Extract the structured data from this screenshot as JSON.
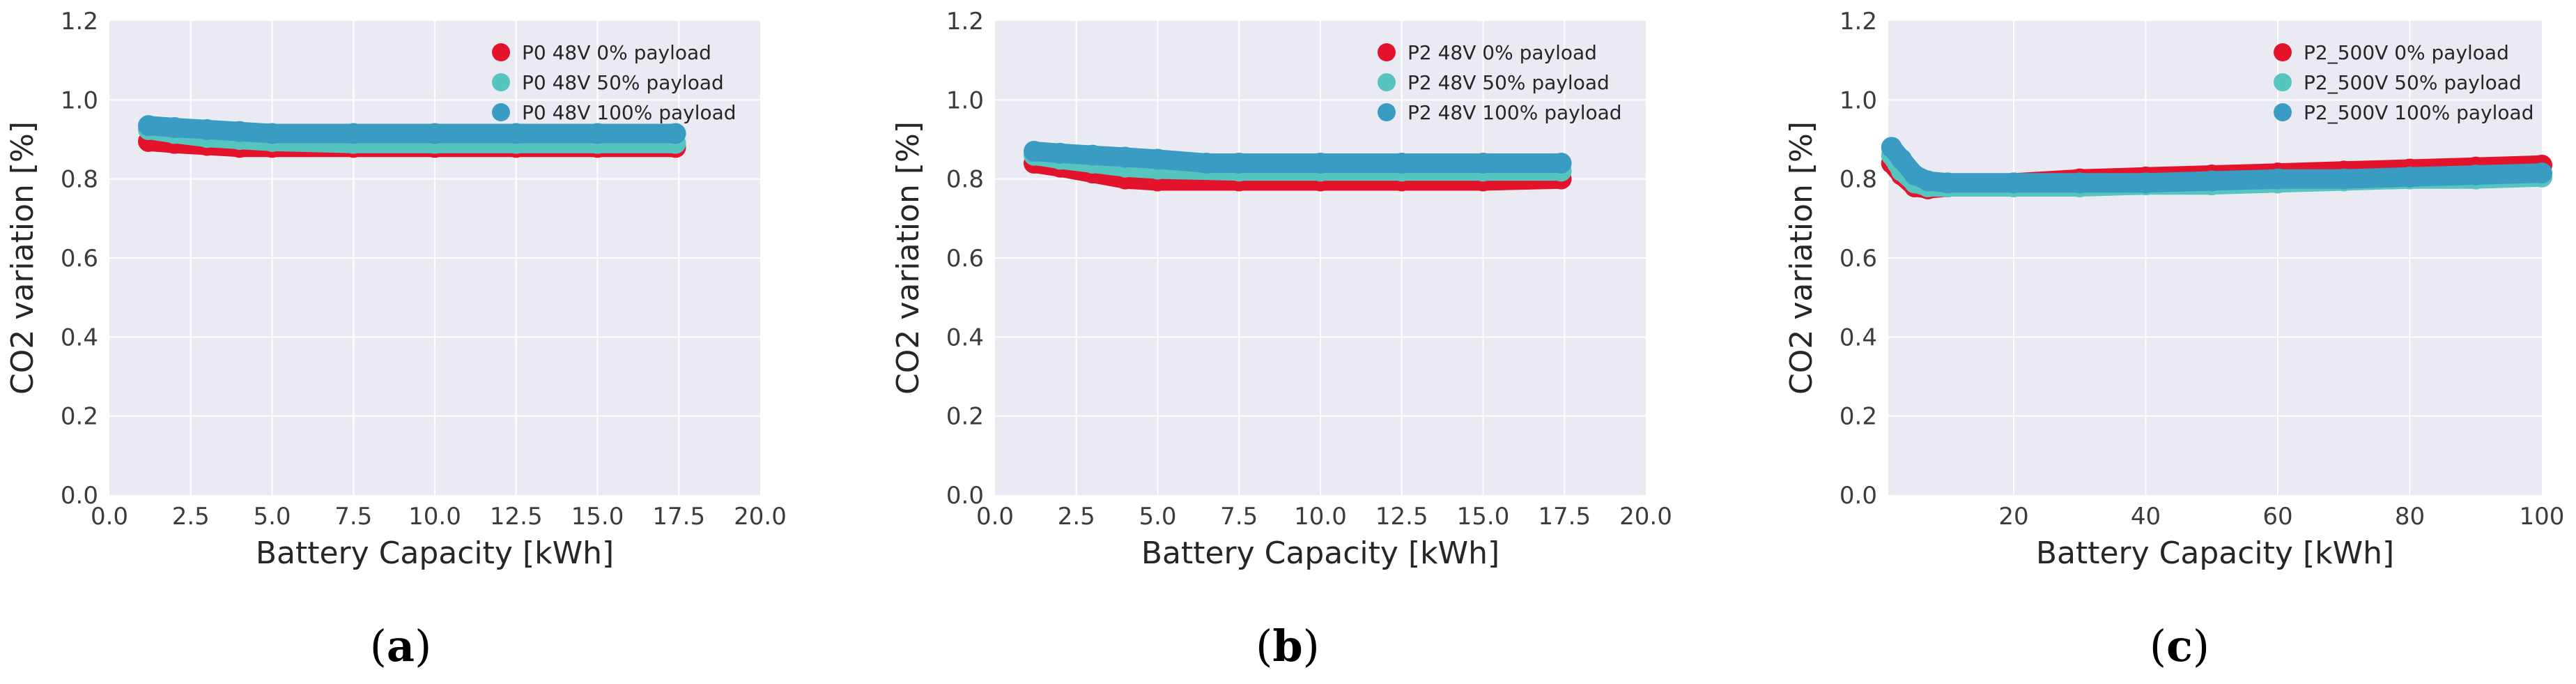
{
  "colors": {
    "plot_bg": "#eaeaf2",
    "grid": "#ffffff",
    "series_0pct": "#e3132c",
    "series_50pct": "#56c5c0",
    "series_100pct": "#3a9cc3"
  },
  "chart_data": [
    {
      "type": "scatter",
      "panel_label": {
        "open": "(",
        "letter": "a",
        "close": ")"
      },
      "xlabel": "Battery Capacity [kWh]",
      "ylabel": "CO2 variation [%]",
      "xlim": [
        0,
        20
      ],
      "ylim": [
        0,
        1.2
      ],
      "xticks": [
        "0.0",
        "2.5",
        "5.0",
        "7.5",
        "10.0",
        "12.5",
        "15.0",
        "17.5",
        "20.0"
      ],
      "yticks": [
        "0.0",
        "0.2",
        "0.4",
        "0.6",
        "0.8",
        "1.0",
        "1.2"
      ],
      "grid": true,
      "legend_position": "top-right",
      "series": [
        {
          "name": "P0 48V 0% payload",
          "color_key": "series_0pct",
          "points": [
            [
              1.2,
              0.895
            ],
            [
              2,
              0.89
            ],
            [
              3,
              0.885
            ],
            [
              4,
              0.88
            ],
            [
              5,
              0.88
            ],
            [
              7.5,
              0.88
            ],
            [
              10,
              0.88
            ],
            [
              12.5,
              0.88
            ],
            [
              15,
              0.88
            ],
            [
              17.4,
              0.88
            ]
          ]
        },
        {
          "name": "P0 48V 50% payload",
          "color_key": "series_50pct",
          "points": [
            [
              1.2,
              0.925
            ],
            [
              2,
              0.915
            ],
            [
              3,
              0.905
            ],
            [
              4,
              0.9
            ],
            [
              5,
              0.895
            ],
            [
              7.5,
              0.89
            ],
            [
              10,
              0.89
            ],
            [
              12.5,
              0.89
            ],
            [
              15,
              0.89
            ],
            [
              17.4,
              0.89
            ]
          ]
        },
        {
          "name": "P0 48V 100% payload",
          "color_key": "series_100pct",
          "points": [
            [
              1.2,
              0.935
            ],
            [
              2,
              0.93
            ],
            [
              3,
              0.925
            ],
            [
              4,
              0.92
            ],
            [
              5,
              0.915
            ],
            [
              7.5,
              0.915
            ],
            [
              10,
              0.915
            ],
            [
              12.5,
              0.915
            ],
            [
              15,
              0.915
            ],
            [
              17.4,
              0.915
            ]
          ]
        }
      ]
    },
    {
      "type": "scatter",
      "panel_label": {
        "open": "(",
        "letter": "b",
        "close": ")"
      },
      "xlabel": "Battery Capacity [kWh]",
      "ylabel": "CO2 variation [%]",
      "xlim": [
        0,
        20
      ],
      "ylim": [
        0,
        1.2
      ],
      "xticks": [
        "0.0",
        "2.5",
        "5.0",
        "7.5",
        "10.0",
        "12.5",
        "15.0",
        "17.5",
        "20.0"
      ],
      "yticks": [
        "0.0",
        "0.2",
        "0.4",
        "0.6",
        "0.8",
        "1.0",
        "1.2"
      ],
      "grid": true,
      "legend_position": "top-right",
      "series": [
        {
          "name": "P2 48V 0% payload",
          "color_key": "series_0pct",
          "points": [
            [
              1.2,
              0.84
            ],
            [
              2,
              0.83
            ],
            [
              3,
              0.815
            ],
            [
              4,
              0.8
            ],
            [
              5,
              0.795
            ],
            [
              7.5,
              0.795
            ],
            [
              10,
              0.795
            ],
            [
              12.5,
              0.795
            ],
            [
              15,
              0.795
            ],
            [
              17.4,
              0.8
            ]
          ]
        },
        {
          "name": "P2 48V 50% payload",
          "color_key": "series_50pct",
          "points": [
            [
              1.2,
              0.86
            ],
            [
              2,
              0.85
            ],
            [
              3,
              0.84
            ],
            [
              4,
              0.83
            ],
            [
              5,
              0.825
            ],
            [
              7.5,
              0.82
            ],
            [
              10,
              0.82
            ],
            [
              12.5,
              0.82
            ],
            [
              15,
              0.82
            ],
            [
              17.4,
              0.82
            ]
          ]
        },
        {
          "name": "P2 48V 100% payload",
          "color_key": "series_100pct",
          "points": [
            [
              1.2,
              0.87
            ],
            [
              2,
              0.865
            ],
            [
              3,
              0.86
            ],
            [
              4,
              0.855
            ],
            [
              5,
              0.85
            ],
            [
              6.5,
              0.84
            ],
            [
              7.5,
              0.84
            ],
            [
              10,
              0.84
            ],
            [
              12.5,
              0.84
            ],
            [
              15,
              0.84
            ],
            [
              17.4,
              0.84
            ]
          ]
        }
      ]
    },
    {
      "type": "scatter",
      "panel_label": {
        "open": "(",
        "letter": "c",
        "close": ")"
      },
      "xlabel": "Battery Capacity [kWh]",
      "ylabel": "CO2 variation [%]",
      "xlim": [
        1,
        100
      ],
      "ylim": [
        0,
        1.2
      ],
      "xticks_values": [
        20,
        40,
        60,
        80,
        100
      ],
      "xticks": [
        "20",
        "40",
        "60",
        "80",
        "100"
      ],
      "yticks": [
        "0.0",
        "0.2",
        "0.4",
        "0.6",
        "0.8",
        "1.0",
        "1.2"
      ],
      "grid": true,
      "legend_position": "top-right",
      "series": [
        {
          "name": "P2_500V 0% payload",
          "color_key": "series_0pct",
          "points": [
            [
              1.5,
              0.84
            ],
            [
              3,
              0.81
            ],
            [
              5,
              0.78
            ],
            [
              7,
              0.775
            ],
            [
              10,
              0.78
            ],
            [
              20,
              0.79
            ],
            [
              30,
              0.8
            ],
            [
              40,
              0.805
            ],
            [
              50,
              0.81
            ],
            [
              60,
              0.815
            ],
            [
              70,
              0.82
            ],
            [
              80,
              0.825
            ],
            [
              90,
              0.83
            ],
            [
              100,
              0.835
            ]
          ]
        },
        {
          "name": "P2_500V 50% payload",
          "color_key": "series_50pct",
          "points": [
            [
              1.5,
              0.86
            ],
            [
              3,
              0.82
            ],
            [
              5,
              0.79
            ],
            [
              7,
              0.78
            ],
            [
              10,
              0.78
            ],
            [
              20,
              0.78
            ],
            [
              30,
              0.78
            ],
            [
              40,
              0.785
            ],
            [
              50,
              0.785
            ],
            [
              60,
              0.79
            ],
            [
              70,
              0.795
            ],
            [
              80,
              0.8
            ],
            [
              90,
              0.8
            ],
            [
              100,
              0.805
            ]
          ]
        },
        {
          "name": "P2_500V 100% payload",
          "color_key": "series_100pct",
          "points": [
            [
              1.5,
              0.88
            ],
            [
              3,
              0.85
            ],
            [
              5,
              0.81
            ],
            [
              7,
              0.795
            ],
            [
              10,
              0.79
            ],
            [
              20,
              0.79
            ],
            [
              30,
              0.79
            ],
            [
              40,
              0.79
            ],
            [
              50,
              0.795
            ],
            [
              60,
              0.8
            ],
            [
              70,
              0.8
            ],
            [
              80,
              0.805
            ],
            [
              90,
              0.81
            ],
            [
              100,
              0.815
            ]
          ]
        }
      ]
    }
  ]
}
